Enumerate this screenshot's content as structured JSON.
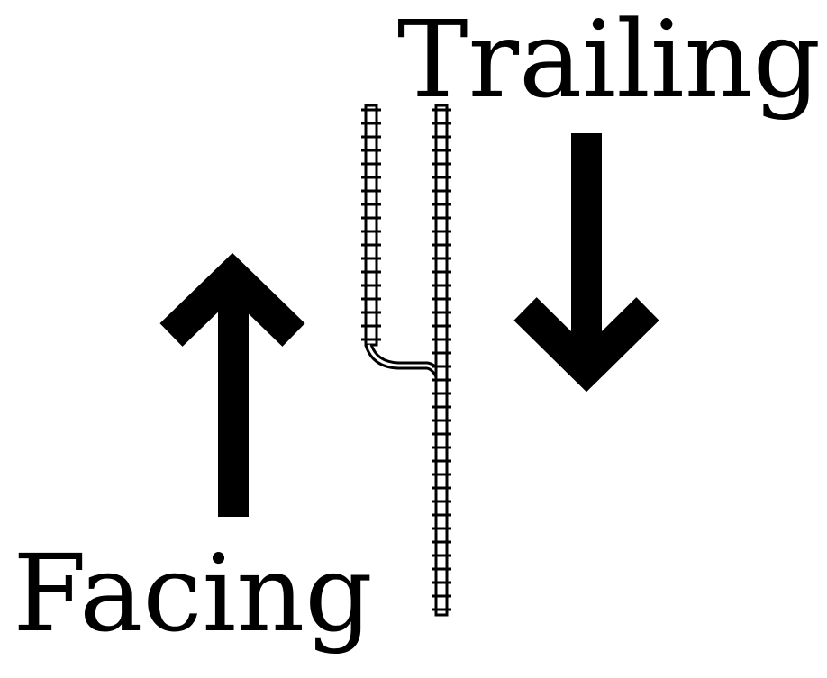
{
  "labels": {
    "trailing": "Trailing",
    "facing": "Facing"
  },
  "colors": {
    "ink": "#000000",
    "background": "#ffffff",
    "sleeper_fill": "#ffffff"
  },
  "icons": {
    "up_arrow": "arrow-up-icon",
    "down_arrow": "arrow-down-icon"
  }
}
